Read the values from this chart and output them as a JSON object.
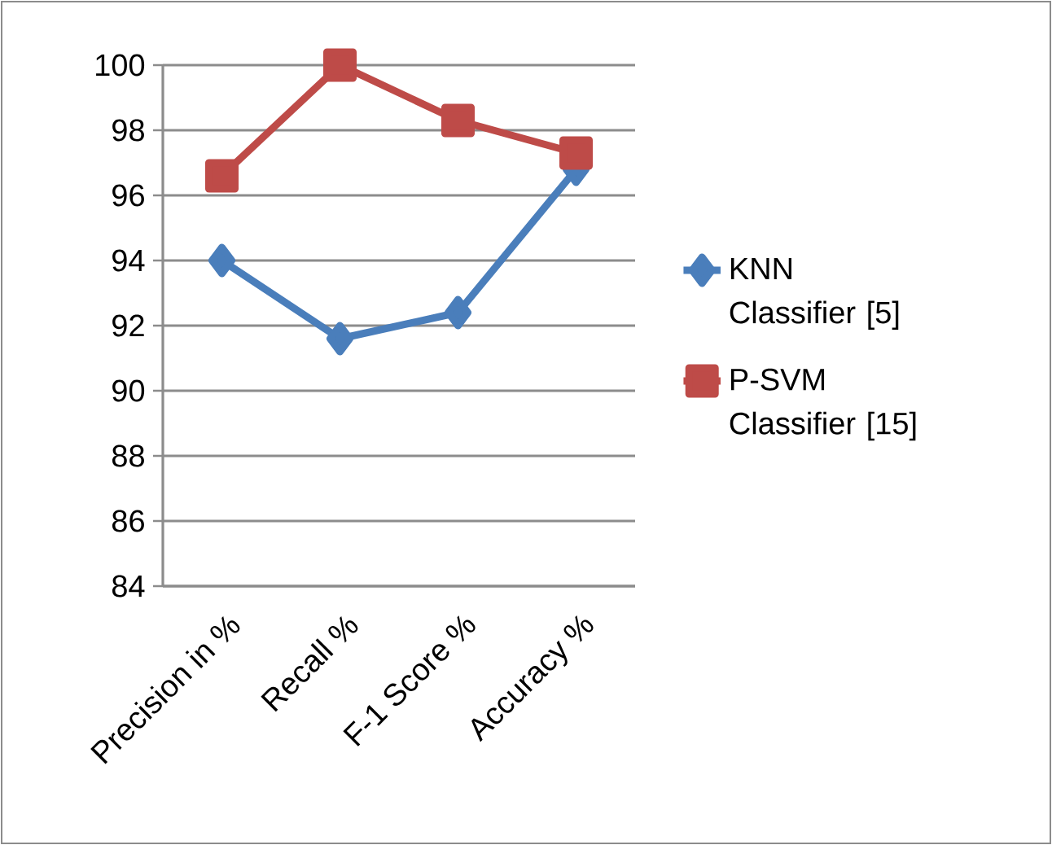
{
  "chart_data": {
    "type": "line",
    "categories": [
      "Precision in %",
      "Recall %",
      "F-1 Score %",
      "Accuracy %"
    ],
    "series": [
      {
        "name": "KNN Classifier [5]",
        "color": "#4a7ebb",
        "marker": "diamond",
        "values": [
          94,
          91.6,
          92.4,
          96.8
        ]
      },
      {
        "name": "P-SVM Classifier [15]",
        "color": "#be4b48",
        "marker": "square",
        "values": [
          96.6,
          100,
          98.3,
          97.3
        ]
      }
    ],
    "ylim": [
      84,
      100
    ],
    "yticks": [
      84,
      86,
      88,
      90,
      92,
      94,
      96,
      98,
      100
    ],
    "grid": "y",
    "legend": "right",
    "line_style": "solid"
  }
}
